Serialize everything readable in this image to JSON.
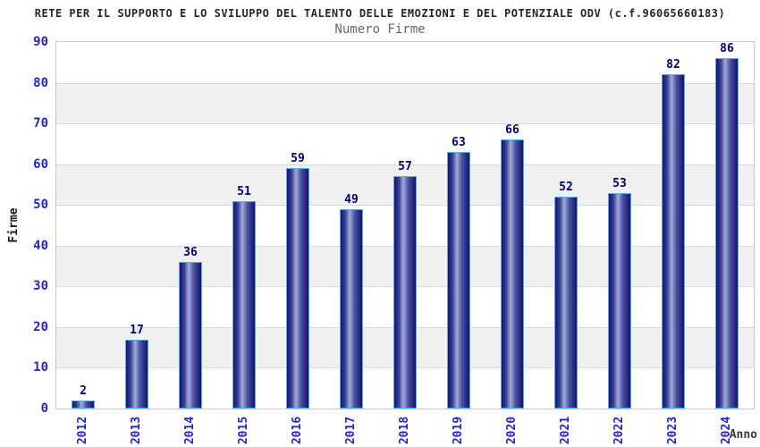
{
  "chart_data": {
    "type": "bar",
    "title": "RETE PER IL SUPPORTO E LO SVILUPPO DEL TALENTO DELLE EMOZIONI E DEL POTENZIALE ODV (c.f.96065660183)",
    "subtitle": "Numero Firme",
    "xlabel": "Anno",
    "ylabel": "Firme",
    "categories": [
      "2012",
      "2013",
      "2014",
      "2015",
      "2016",
      "2017",
      "2018",
      "2019",
      "2020",
      "2021",
      "2022",
      "2023",
      "2024"
    ],
    "values": [
      2,
      17,
      36,
      51,
      59,
      49,
      57,
      63,
      66,
      52,
      53,
      82,
      86
    ],
    "ylim": [
      0,
      90
    ],
    "ytick_step": 10,
    "grid": true,
    "legend": "none",
    "colors": {
      "bar_border": "#55aae8",
      "bar_gradient": [
        "#16166e",
        "#3a4294",
        "#a2acda",
        "#4a52a0",
        "#12126a"
      ],
      "value_label": "#00006a",
      "axis_tick_text": "#2424cc",
      "title_text": "#26262c",
      "subtitle_text": "#666666",
      "band_fill": "#f0f0f0",
      "grid_line": "#d9d9d9",
      "plot_border": "#c6c6c6"
    }
  }
}
